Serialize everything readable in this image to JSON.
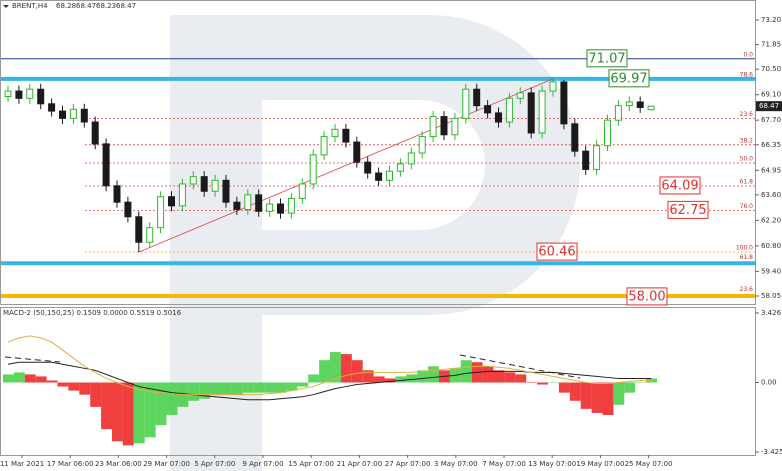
{
  "chart_data": {
    "type": "candlestick",
    "header": {
      "symbol": "BRENT,H4",
      "open": 68.28,
      "high": 68.47,
      "low": 68.23,
      "close": 68.47
    },
    "up_color": "#2eb82e",
    "down_color": "#1a1a1a",
    "ylim": [
      58.05,
      73.2
    ],
    "yticks": [
      {
        "value": 73.2,
        "label": "73.20"
      },
      71.85,
      {
        "value": 70.5,
        "label": "70.50"
      },
      {
        "value": 69.1,
        "label": "69.10"
      },
      {
        "value": 67.7,
        "label": "67.70"
      },
      66.35,
      64.95,
      {
        "value": 63.6,
        "label": "63.60"
      },
      {
        "value": 62.2,
        "label": "62.20"
      },
      {
        "value": 60.8,
        "label": "60.80"
      },
      {
        "value": 59.4,
        "label": "59.40"
      },
      58.05
    ],
    "current_price": 68.47,
    "x_labels": [
      "11 Mar 2021",
      "17 Mar 06:00",
      "23 Mar 06:00",
      "29 Mar 07:00",
      "5 Apr 07:00",
      "9 Apr 07:00",
      "15 Apr 07:00",
      "21 Apr 07:00",
      "27 Apr 07:00",
      "3 May 07:00",
      "7 May 07:00",
      "13 May 07:00",
      "19 May 07:00",
      "25 May 07:00"
    ],
    "candles": [
      [
        69.0,
        69.6,
        68.7,
        69.3
      ],
      [
        69.3,
        69.6,
        68.6,
        68.9
      ],
      [
        68.9,
        69.7,
        68.6,
        69.4
      ],
      [
        69.4,
        69.7,
        68.3,
        68.6
      ],
      [
        68.6,
        68.9,
        67.9,
        68.2
      ],
      [
        68.2,
        68.5,
        67.5,
        67.8
      ],
      [
        67.8,
        68.6,
        67.5,
        68.3
      ],
      [
        68.3,
        68.6,
        67.3,
        67.6
      ],
      [
        67.6,
        67.9,
        66.1,
        66.4
      ],
      [
        66.4,
        66.7,
        63.8,
        64.1
      ],
      [
        64.1,
        64.4,
        62.9,
        63.2
      ],
      [
        63.2,
        63.5,
        62.1,
        62.4
      ],
      [
        62.4,
        62.7,
        60.46,
        61.0
      ],
      [
        61.0,
        62.1,
        60.7,
        61.8
      ],
      [
        61.8,
        63.8,
        61.5,
        63.5
      ],
      [
        63.5,
        63.8,
        62.7,
        63.0
      ],
      [
        63.0,
        64.5,
        62.7,
        64.2
      ],
      [
        64.2,
        64.9,
        63.9,
        64.6
      ],
      [
        64.6,
        64.9,
        63.5,
        63.8
      ],
      [
        63.8,
        64.7,
        63.5,
        64.4
      ],
      [
        64.4,
        64.7,
        62.9,
        63.2
      ],
      [
        63.2,
        63.5,
        62.5,
        62.8
      ],
      [
        62.8,
        63.9,
        62.5,
        63.6
      ],
      [
        63.6,
        63.9,
        62.4,
        62.7
      ],
      [
        62.7,
        63.4,
        62.4,
        63.1
      ],
      [
        63.1,
        63.4,
        62.3,
        62.6
      ],
      [
        62.6,
        63.7,
        62.3,
        63.4
      ],
      [
        63.4,
        64.5,
        63.1,
        64.2
      ],
      [
        64.2,
        66.1,
        63.9,
        65.8
      ],
      [
        65.8,
        67.1,
        65.5,
        66.8
      ],
      [
        66.8,
        67.5,
        66.5,
        67.2
      ],
      [
        67.2,
        67.5,
        66.2,
        66.5
      ],
      [
        66.5,
        66.8,
        65.1,
        65.4
      ],
      [
        65.4,
        65.7,
        64.5,
        64.8
      ],
      [
        64.8,
        65.1,
        64.1,
        64.4
      ],
      [
        64.4,
        65.2,
        64.1,
        64.9
      ],
      [
        64.9,
        65.6,
        64.6,
        65.3
      ],
      [
        65.3,
        66.2,
        65.0,
        65.9
      ],
      [
        65.9,
        67.1,
        65.6,
        66.8
      ],
      [
        66.8,
        68.2,
        66.5,
        67.9
      ],
      [
        67.9,
        68.2,
        66.6,
        66.9
      ],
      [
        66.9,
        68.1,
        66.6,
        67.8
      ],
      [
        67.8,
        69.7,
        67.5,
        69.4
      ],
      [
        69.4,
        69.7,
        68.2,
        68.5
      ],
      [
        68.5,
        68.8,
        67.8,
        68.1
      ],
      [
        68.1,
        68.4,
        67.3,
        67.6
      ],
      [
        67.6,
        69.2,
        67.3,
        68.9
      ],
      [
        68.9,
        69.5,
        68.6,
        69.2
      ],
      [
        69.2,
        69.5,
        66.7,
        67.0
      ],
      [
        67.0,
        69.6,
        66.7,
        69.3
      ],
      [
        69.3,
        69.97,
        69.0,
        69.8
      ],
      [
        69.8,
        69.9,
        67.2,
        67.5
      ],
      [
        67.5,
        67.8,
        65.7,
        66.0
      ],
      [
        66.0,
        66.3,
        64.7,
        65.0
      ],
      [
        65.0,
        66.6,
        64.7,
        66.3
      ],
      [
        66.3,
        68.0,
        66.0,
        67.7
      ],
      [
        67.7,
        68.8,
        67.4,
        68.5
      ],
      [
        68.5,
        69.0,
        68.2,
        68.7
      ],
      [
        68.7,
        69.0,
        68.1,
        68.4
      ],
      [
        68.28,
        68.47,
        68.23,
        68.47
      ]
    ],
    "levels": [
      {
        "value": 71.07,
        "color": "#1f3f8f",
        "width": 1
      },
      {
        "value": 69.97,
        "color": "#33b5e5",
        "width": 4
      },
      {
        "value": 59.85,
        "color": "#33b5e5",
        "width": 4
      },
      {
        "value": 58.05,
        "color": "#f5b800",
        "width": 4
      }
    ],
    "fib_levels": [
      {
        "label": "0.0",
        "value": 71.07
      },
      {
        "label": "78.6",
        "value": 69.97
      },
      {
        "label": "23.6",
        "value": 67.8
      },
      {
        "label": "38.2",
        "value": 66.35
      },
      {
        "label": "50.0",
        "value": 65.35
      },
      {
        "label": "61.8",
        "value": 64.09
      },
      {
        "label": "76.0",
        "value": 62.75
      },
      {
        "label": "100.0",
        "value": 60.46
      },
      {
        "label": "61.8",
        "value": 59.95
      },
      {
        "label": "23.6",
        "value": 58.2
      }
    ],
    "price_boxes": [
      {
        "label": "71.07",
        "value": 71.07,
        "color": "#2e8b2e",
        "x": 587
      },
      {
        "label": "69.97",
        "value": 69.97,
        "color": "#2e8b2e",
        "x": 609
      },
      {
        "label": "64.09",
        "value": 64.09,
        "color": "#e03030",
        "x": 660
      },
      {
        "label": "62.75",
        "value": 62.75,
        "color": "#e03030",
        "x": 668
      },
      {
        "label": "60.46",
        "value": 60.46,
        "color": "#e03030",
        "x": 537
      },
      {
        "label": "58.00",
        "value": 58.0,
        "color": "#e03030",
        "x": 627
      }
    ],
    "macd": {
      "title": "MACD-2 (50,150,25) 0.1509 0.0000 0.5519 0.5016",
      "ylim": [
        -3.4252,
        3.426
      ],
      "yticks": [
        {
          "value": 3.426,
          "label": "3.426"
        },
        {
          "value": 0,
          "label": "0.00"
        },
        {
          "value": -3.4252,
          "label": "-3.4252"
        }
      ],
      "histogram": [
        0.4,
        0.5,
        0.4,
        0.3,
        0.1,
        -0.2,
        -0.4,
        -0.6,
        -1.2,
        -2.3,
        -2.9,
        -3.1,
        -3.0,
        -2.7,
        -2.1,
        -1.6,
        -1.2,
        -0.9,
        -0.8,
        -0.6,
        -0.6,
        -0.6,
        -0.5,
        -0.5,
        -0.5,
        -0.5,
        -0.4,
        -0.2,
        0.4,
        1.1,
        1.5,
        1.4,
        1.1,
        0.6,
        0.3,
        0.2,
        0.3,
        0.4,
        0.6,
        0.8,
        0.6,
        0.7,
        1.1,
        1.0,
        0.8,
        0.6,
        0.5,
        0.4,
        0.0,
        -0.1,
        0.0,
        -0.5,
        -0.9,
        -1.3,
        -1.5,
        -1.6,
        -1.1,
        -0.5,
        0.0,
        0.2
      ],
      "main": [
        0.9,
        1.0,
        1.0,
        1.0,
        1.0,
        0.9,
        0.8,
        0.7,
        0.6,
        0.4,
        0.2,
        0.0,
        -0.2,
        -0.3,
        -0.4,
        -0.5,
        -0.55,
        -0.6,
        -0.65,
        -0.7,
        -0.75,
        -0.8,
        -0.85,
        -0.85,
        -0.85,
        -0.8,
        -0.75,
        -0.7,
        -0.6,
        -0.45,
        -0.3,
        -0.2,
        -0.1,
        -0.05,
        0.0,
        0.05,
        0.1,
        0.15,
        0.2,
        0.25,
        0.3,
        0.35,
        0.45,
        0.5,
        0.55,
        0.55,
        0.55,
        0.55,
        0.5,
        0.5,
        0.5,
        0.45,
        0.4,
        0.35,
        0.3,
        0.25,
        0.2,
        0.2,
        0.2,
        0.2
      ],
      "signal": [
        2.0,
        2.2,
        2.3,
        2.2,
        2.0,
        1.6,
        1.2,
        0.8,
        0.5,
        0.2,
        0.0,
        -0.2,
        -0.35,
        -0.45,
        -0.5,
        -0.55,
        -0.6,
        -0.6,
        -0.6,
        -0.6,
        -0.6,
        -0.6,
        -0.6,
        -0.6,
        -0.55,
        -0.5,
        -0.4,
        -0.3,
        -0.2,
        0.0,
        0.2,
        0.35,
        0.45,
        0.5,
        0.5,
        0.5,
        0.5,
        0.5,
        0.55,
        0.6,
        0.65,
        0.7,
        0.75,
        0.8,
        0.8,
        0.75,
        0.7,
        0.6,
        0.5,
        0.4,
        0.3,
        0.2,
        0.1,
        0.0,
        -0.05,
        -0.05,
        0.0,
        0.05,
        0.1,
        0.1
      ]
    }
  }
}
